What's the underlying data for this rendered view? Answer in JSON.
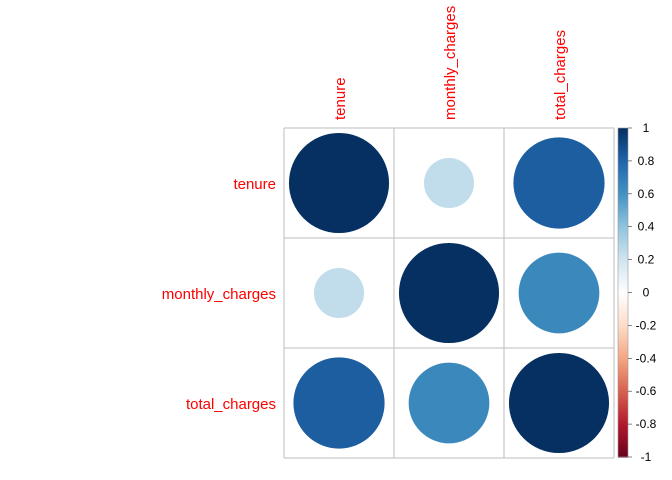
{
  "chart_data": {
    "type": "heatmap",
    "subtype": "correlation-matrix-circles",
    "variables": [
      "tenure",
      "monthly_charges",
      "total_charges"
    ],
    "matrix": [
      [
        1.0,
        0.25,
        0.83
      ],
      [
        0.25,
        1.0,
        0.65
      ],
      [
        0.83,
        0.65,
        1.0
      ]
    ],
    "colorbar": {
      "range": [
        -1,
        1
      ],
      "ticks": [
        "1",
        "0.8",
        "0.6",
        "0.4",
        "0.2",
        "0",
        "-0.2",
        "-0.4",
        "-0.6",
        "-0.8",
        "-1"
      ],
      "tick_values": [
        1,
        0.8,
        0.6,
        0.4,
        0.2,
        0,
        -0.2,
        -0.4,
        -0.6,
        -0.8,
        -1
      ],
      "palette": [
        "#67001F",
        "#B2182B",
        "#D6604D",
        "#F4A582",
        "#FDDBC7",
        "#FFFFFF",
        "#D1E5F0",
        "#92C5DE",
        "#4393C3",
        "#2166AC",
        "#053061"
      ]
    },
    "label_color": "#FF0000",
    "grid": true
  }
}
